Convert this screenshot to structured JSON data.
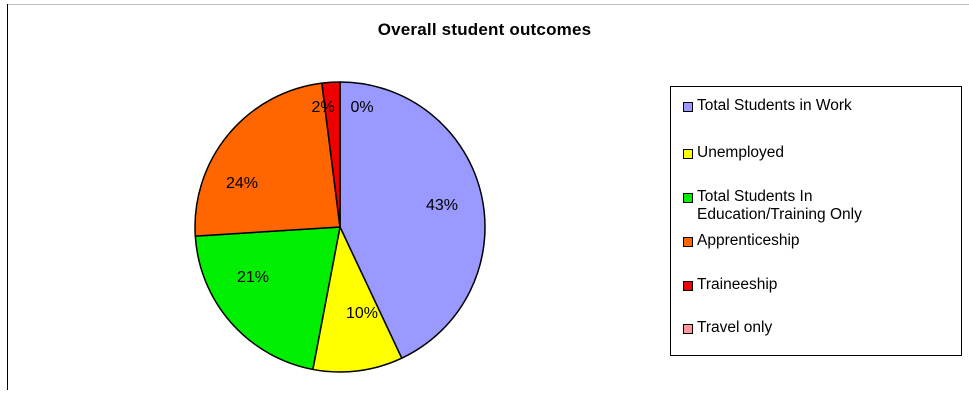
{
  "chart_data": {
    "type": "pie",
    "title": "Overall student outcomes",
    "slices": [
      {
        "label": "Total Students in Work",
        "value": 43,
        "value_label": "43%",
        "color": "#9999ff"
      },
      {
        "label": "Unemployed",
        "value": 10,
        "value_label": "10%",
        "color": "#ffff00"
      },
      {
        "label": "Total Students In\nEducation/Training Only",
        "value": 21,
        "value_label": "21%",
        "color": "#00ee00"
      },
      {
        "label": "Apprenticeship",
        "value": 24,
        "value_label": "24%",
        "color": "#ff6600"
      },
      {
        "label": "Traineeship",
        "value": 2,
        "value_label": "2%",
        "color": "#ee0000"
      },
      {
        "label": "Travel only",
        "value": 0,
        "value_label": "0%",
        "color": "#ff9999"
      }
    ],
    "legend_position": "right",
    "slice_border_color": "#000000"
  }
}
